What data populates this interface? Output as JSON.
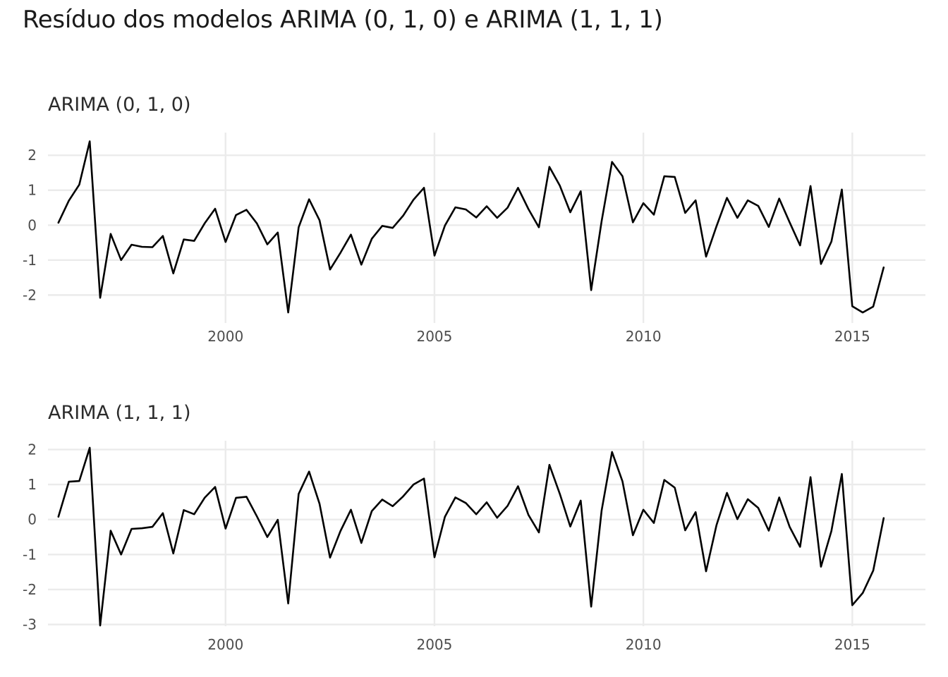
{
  "title": "Resíduo dos modelos ARIMA (0, 1, 0) e ARIMA (1, 1, 1)",
  "colors": {
    "line": "#000000",
    "grid": "#ebebeb",
    "tick_text": "#4d4d4d"
  },
  "chart_data": [
    {
      "type": "line",
      "title": "ARIMA (0, 1, 0)",
      "xlabel": "",
      "ylabel": "",
      "x_ticks": [
        2000,
        2005,
        2010,
        2015
      ],
      "y_ticks": [
        2,
        1,
        0,
        -1,
        -2
      ],
      "xlim": [
        1995.75,
        2016.75
      ],
      "ylim": [
        -2.8,
        2.65
      ],
      "grid": true,
      "x_start": 1996.0,
      "x_step": 0.25,
      "values": [
        0.07,
        0.7,
        1.16,
        2.4,
        -2.08,
        -0.25,
        -1.0,
        -0.56,
        -0.62,
        -0.63,
        -0.31,
        -1.38,
        -0.41,
        -0.45,
        0.05,
        0.47,
        -0.48,
        0.29,
        0.44,
        0.05,
        -0.55,
        -0.21,
        -2.5,
        -0.06,
        0.74,
        0.14,
        -1.27,
        -0.79,
        -0.27,
        -1.13,
        -0.39,
        -0.02,
        -0.08,
        0.27,
        0.73,
        1.07,
        -0.87,
        -0.01,
        0.51,
        0.45,
        0.22,
        0.54,
        0.21,
        0.5,
        1.07,
        0.46,
        -0.06,
        1.67,
        1.13,
        0.37,
        0.97,
        -1.86,
        0.11,
        1.81,
        1.4,
        0.08,
        0.63,
        0.3,
        1.4,
        1.38,
        0.35,
        0.71,
        -0.9,
        -0.03,
        0.78,
        0.21,
        0.71,
        0.55,
        -0.05,
        0.76,
        0.08,
        -0.58,
        1.12,
        -1.11,
        -0.47,
        1.02,
        -2.32,
        -2.5,
        -2.33,
        -1.21
      ]
    },
    {
      "type": "line",
      "title": "ARIMA (1, 1, 1)",
      "xlabel": "",
      "ylabel": "",
      "x_ticks": [
        2000,
        2005,
        2010,
        2015
      ],
      "y_ticks": [
        2,
        1,
        0,
        -1,
        -2,
        -3
      ],
      "xlim": [
        1995.75,
        2016.75
      ],
      "ylim": [
        -3.05,
        2.25
      ],
      "grid": true,
      "x_start": 1996.0,
      "x_step": 0.25,
      "values": [
        0.08,
        1.08,
        1.1,
        2.05,
        -3.03,
        -0.32,
        -1.0,
        -0.27,
        -0.25,
        -0.21,
        0.18,
        -0.97,
        0.27,
        0.15,
        0.62,
        0.93,
        -0.26,
        0.62,
        0.65,
        0.09,
        -0.5,
        -0.01,
        -2.4,
        0.73,
        1.37,
        0.45,
        -1.09,
        -0.33,
        0.28,
        -0.67,
        0.24,
        0.57,
        0.38,
        0.66,
        1.0,
        1.17,
        -1.08,
        0.08,
        0.63,
        0.47,
        0.15,
        0.49,
        0.05,
        0.39,
        0.95,
        0.13,
        -0.37,
        1.56,
        0.73,
        -0.2,
        0.54,
        -2.49,
        0.25,
        1.93,
        1.09,
        -0.45,
        0.28,
        -0.1,
        1.13,
        0.91,
        -0.31,
        0.21,
        -1.48,
        -0.16,
        0.76,
        0.01,
        0.58,
        0.33,
        -0.32,
        0.63,
        -0.21,
        -0.78,
        1.21,
        -1.35,
        -0.33,
        1.3,
        -2.45,
        -2.1,
        -1.46,
        0.04
      ]
    }
  ]
}
